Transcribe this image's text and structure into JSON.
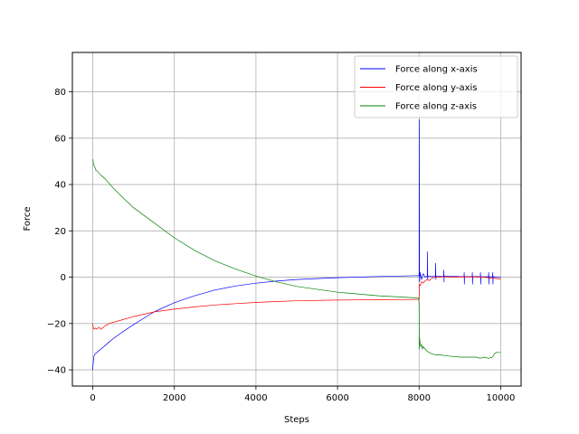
{
  "chart_data": {
    "type": "line",
    "xlabel": "Steps",
    "ylabel": "Force",
    "xlim": [
      -500,
      10500
    ],
    "ylim": [
      -47,
      97
    ],
    "xticks": [
      0,
      2000,
      4000,
      6000,
      8000,
      10000
    ],
    "xtick_labels": [
      "0",
      "2000",
      "4000",
      "6000",
      "8000",
      "10000"
    ],
    "yticks": [
      -40,
      -20,
      0,
      20,
      40,
      60,
      80
    ],
    "ytick_labels": [
      "−40",
      "−20",
      "0",
      "20",
      "40",
      "60",
      "80"
    ],
    "grid": true,
    "legend_position": "top-right",
    "series": [
      {
        "name": "Force along x-axis",
        "color": "#0000ff",
        "x": [
          0,
          10,
          30,
          60,
          100,
          200,
          300,
          400,
          500,
          700,
          1000,
          1500,
          2000,
          2500,
          3000,
          3500,
          4000,
          4500,
          5000,
          6000,
          7000,
          7990,
          8000,
          8005,
          8010,
          8030,
          8060,
          8100,
          8150,
          8200,
          8205,
          8210,
          8215,
          8300,
          8400,
          8405,
          8410,
          8415,
          8500,
          8600,
          8605,
          8610,
          8615,
          8700,
          8800,
          9000,
          9100,
          9105,
          9110,
          9115,
          9200,
          9300,
          9305,
          9310,
          9315,
          9400,
          9500,
          9505,
          9510,
          9515,
          9600,
          9700,
          9705,
          9710,
          9715,
          9800,
          9805,
          9810,
          9815,
          9900,
          10000
        ],
        "y": [
          -40,
          -37,
          -34,
          -33,
          -32.5,
          -31,
          -29.5,
          -28,
          -26.5,
          -24,
          -20.5,
          -15,
          -11,
          -8,
          -5.5,
          -3.8,
          -2.6,
          -1.7,
          -1,
          -0.2,
          0.3,
          0.7,
          0.5,
          68,
          -2,
          2,
          -1,
          1.5,
          0,
          0.5,
          11,
          -1,
          0.5,
          0.5,
          0.3,
          6,
          -1,
          0.5,
          0.5,
          0.3,
          3,
          -2,
          0.5,
          0.5,
          0.5,
          0.3,
          0.3,
          2,
          -3,
          0.3,
          0.3,
          0.3,
          2,
          -3,
          0.3,
          0.3,
          0.2,
          2,
          -3,
          0.2,
          0.2,
          0.2,
          2,
          -3,
          0.2,
          0.2,
          2,
          -3,
          0.2,
          0.1,
          0
        ]
      },
      {
        "name": "Force along y-axis",
        "color": "#ff0000",
        "x": [
          0,
          10,
          30,
          60,
          100,
          150,
          200,
          300,
          400,
          500,
          700,
          1000,
          1500,
          2000,
          2500,
          3000,
          3500,
          4000,
          4500,
          5000,
          6000,
          7000,
          7990,
          8000,
          8005,
          8010,
          8030,
          8060,
          8100,
          8150,
          8200,
          8250,
          8300,
          8400,
          8500,
          8600,
          8800,
          9000,
          9300,
          9600,
          9800,
          10000
        ],
        "y": [
          -20,
          -21.5,
          -22.5,
          -22,
          -22.5,
          -21.5,
          -22.5,
          -21,
          -20,
          -19.5,
          -18.5,
          -17,
          -15,
          -13.8,
          -12.8,
          -12,
          -11.4,
          -10.9,
          -10.5,
          -10.2,
          -9.9,
          -9.7,
          -9.6,
          -9.6,
          -3,
          -4,
          -3.5,
          -2,
          -2.5,
          -1.5,
          -1,
          -1.5,
          -0.5,
          0,
          0,
          0.3,
          0,
          0.2,
          0.2,
          0,
          -0.4,
          -0.8
        ]
      },
      {
        "name": "Force along z-axis",
        "color": "#008000",
        "x": [
          0,
          10,
          20,
          40,
          60,
          80,
          100,
          150,
          200,
          300,
          500,
          700,
          1000,
          1500,
          2000,
          2500,
          3000,
          3500,
          4000,
          4500,
          5000,
          6000,
          7000,
          7990,
          8000,
          8005,
          8010,
          8020,
          8040,
          8060,
          8080,
          8100,
          8150,
          8200,
          8300,
          8400,
          8500,
          8700,
          9000,
          9200,
          9400,
          9500,
          9600,
          9700,
          9800,
          9850,
          9900,
          10000
        ],
        "y": [
          51,
          50,
          48.5,
          48,
          47,
          46,
          46,
          45,
          44,
          42.5,
          38.5,
          35,
          30,
          23.5,
          17,
          11.5,
          7,
          3.5,
          0.5,
          -2,
          -4,
          -6.5,
          -8,
          -9,
          -12,
          -31,
          -26,
          -28,
          -30,
          -29,
          -31,
          -30,
          -31,
          -32,
          -33,
          -33.5,
          -33.5,
          -34,
          -34.5,
          -34.5,
          -34.5,
          -35,
          -34.5,
          -35,
          -34.5,
          -33,
          -32.5,
          -32.5
        ]
      }
    ]
  }
}
